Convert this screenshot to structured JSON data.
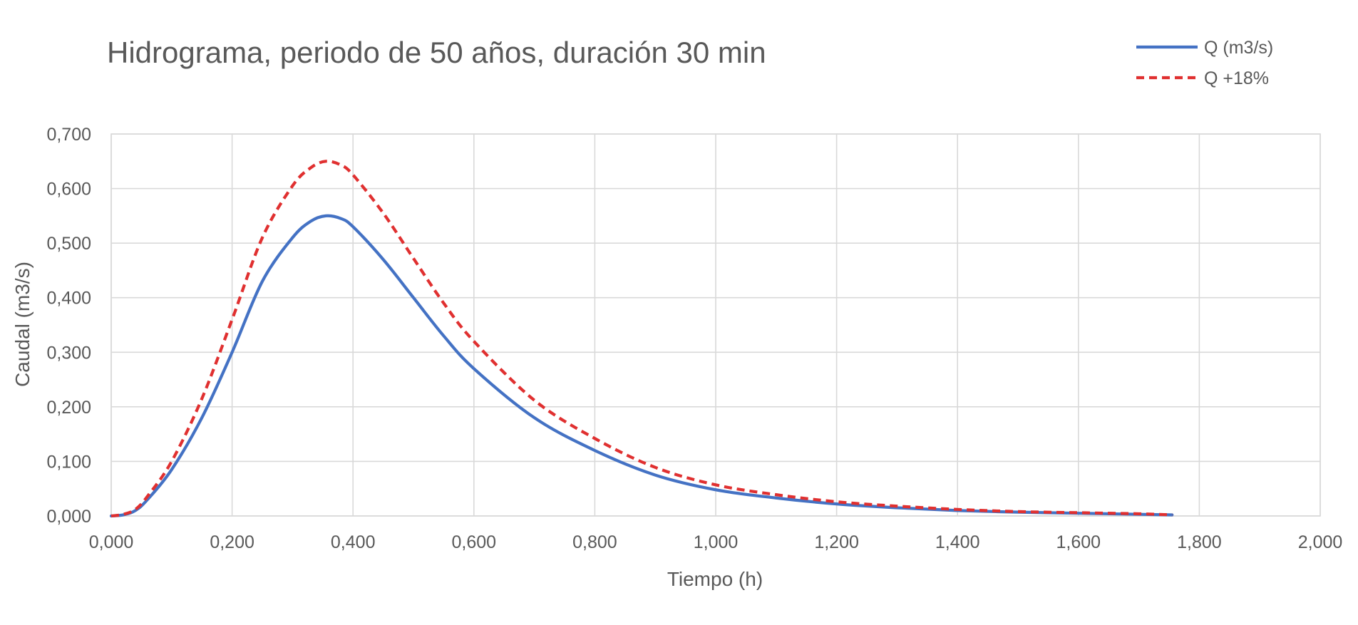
{
  "chart_data": {
    "type": "line",
    "title": "Hidrograma, periodo de 50 años, duración 30 min",
    "xlabel": "Tiempo (h)",
    "ylabel": "Caudal (m3/s)",
    "xlim": [
      0,
      2
    ],
    "ylim": [
      0,
      0.7
    ],
    "x_ticks": [
      0,
      0.2,
      0.4,
      0.6,
      0.8,
      1.0,
      1.2,
      1.4,
      1.6,
      1.8,
      2.0
    ],
    "y_ticks": [
      0,
      0.1,
      0.2,
      0.3,
      0.4,
      0.5,
      0.6,
      0.7
    ],
    "x_tick_labels": [
      "0,000",
      "0,200",
      "0,400",
      "0,600",
      "0,800",
      "1,000",
      "1,200",
      "1,400",
      "1,600",
      "1,800",
      "2,000"
    ],
    "y_tick_labels": [
      "0,000",
      "0,100",
      "0,200",
      "0,300",
      "0,400",
      "0,500",
      "0,600",
      "0,700"
    ],
    "grid": true,
    "legend_position": "top-right",
    "series": [
      {
        "name": "Q (m3/s)",
        "color": "#4472C4",
        "dash": "solid",
        "x": [
          0,
          0.02,
          0.04,
          0.06,
          0.1,
          0.15,
          0.2,
          0.25,
          0.3,
          0.33,
          0.355,
          0.38,
          0.4,
          0.45,
          0.5,
          0.55,
          0.6,
          0.7,
          0.8,
          0.9,
          1.0,
          1.1,
          1.2,
          1.3,
          1.4,
          1.5,
          1.6,
          1.7,
          1.755
        ],
        "y": [
          0,
          0.002,
          0.01,
          0.03,
          0.085,
          0.18,
          0.3,
          0.43,
          0.51,
          0.54,
          0.55,
          0.545,
          0.53,
          0.47,
          0.4,
          0.33,
          0.27,
          0.18,
          0.12,
          0.075,
          0.048,
          0.033,
          0.022,
          0.015,
          0.01,
          0.007,
          0.005,
          0.003,
          0.002
        ]
      },
      {
        "name": "Q +18%",
        "color": "#E03030",
        "dash": "dashed",
        "x": [
          0,
          0.02,
          0.04,
          0.06,
          0.1,
          0.15,
          0.2,
          0.25,
          0.3,
          0.33,
          0.355,
          0.38,
          0.4,
          0.45,
          0.5,
          0.55,
          0.6,
          0.7,
          0.8,
          0.9,
          1.0,
          1.1,
          1.2,
          1.3,
          1.4,
          1.5,
          1.6,
          1.7,
          1.755
        ],
        "y": [
          0,
          0.003,
          0.012,
          0.036,
          0.1,
          0.215,
          0.36,
          0.51,
          0.605,
          0.638,
          0.65,
          0.643,
          0.625,
          0.555,
          0.472,
          0.39,
          0.32,
          0.212,
          0.142,
          0.089,
          0.057,
          0.039,
          0.026,
          0.018,
          0.012,
          0.008,
          0.006,
          0.004,
          0.002
        ]
      }
    ]
  }
}
